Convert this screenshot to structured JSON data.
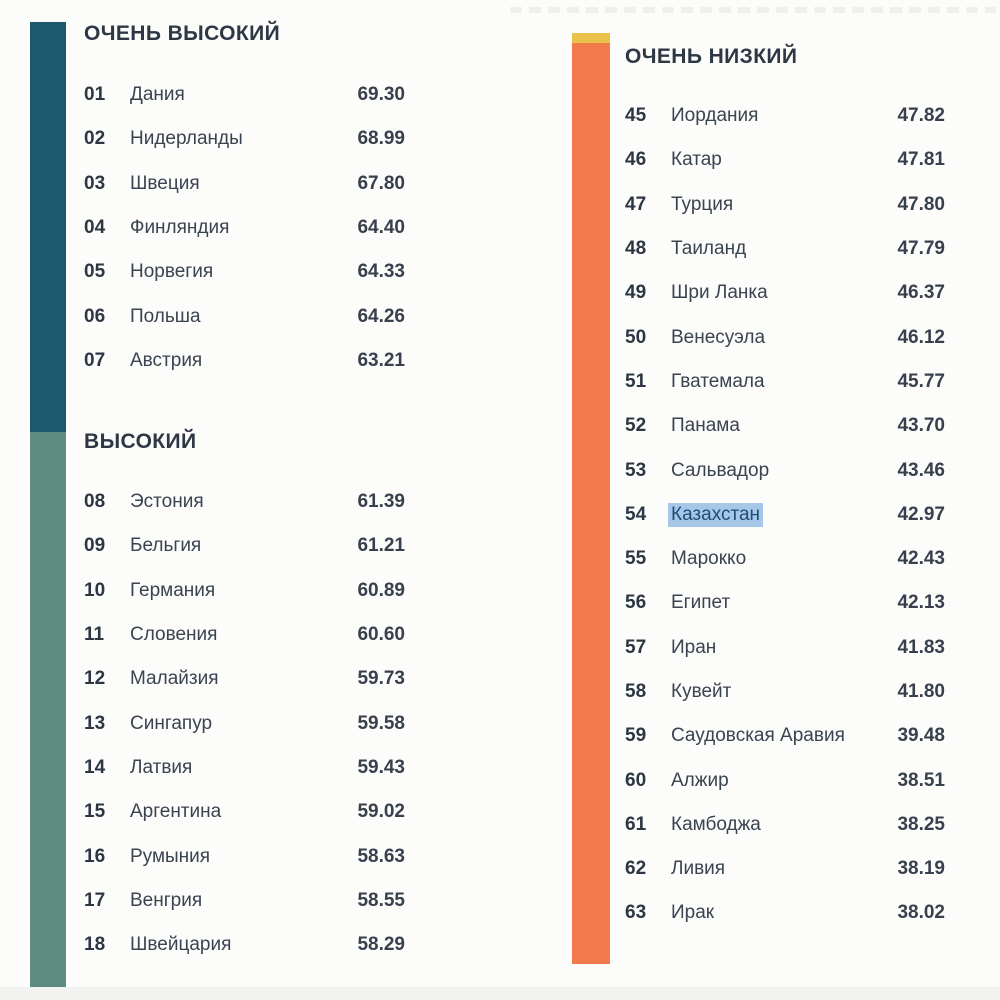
{
  "colors": {
    "very_high_bar": "#1d586d",
    "high_bar": "#5d8b80",
    "low_bar_accent": "#e8c24b",
    "very_low_bar": "#f2794b",
    "text": "#3a4350",
    "rank_text": "#2d3743",
    "header_text": "#2e3844",
    "score_text": "#39404d",
    "highlight_bg": "#a7c7e8",
    "highlight_text": "#1d4e79",
    "background": "#fcfcfb",
    "footer_strip": "#f2f2f0"
  },
  "columns": {
    "left": {
      "sections": [
        {
          "title": "ОЧЕНЬ ВЫСОКИЙ",
          "category_color": "#1d586d",
          "rows": [
            {
              "rank": "01",
              "country": "Дания",
              "score": "69.30"
            },
            {
              "rank": "02",
              "country": "Нидерланды",
              "score": "68.99"
            },
            {
              "rank": "03",
              "country": "Швеция",
              "score": "67.80"
            },
            {
              "rank": "04",
              "country": "Финляндия",
              "score": "64.40"
            },
            {
              "rank": "05",
              "country": "Норвегия",
              "score": "64.33"
            },
            {
              "rank": "06",
              "country": "Польша",
              "score": "64.26"
            },
            {
              "rank": "07",
              "country": "Австрия",
              "score": "63.21"
            }
          ]
        },
        {
          "title": "ВЫСОКИЙ",
          "category_color": "#5d8b80",
          "rows": [
            {
              "rank": "08",
              "country": "Эстония",
              "score": "61.39"
            },
            {
              "rank": "09",
              "country": "Бельгия",
              "score": "61.21"
            },
            {
              "rank": "10",
              "country": "Германия",
              "score": "60.89"
            },
            {
              "rank": "11",
              "country": "Словения",
              "score": "60.60"
            },
            {
              "rank": "12",
              "country": "Малайзия",
              "score": "59.73"
            },
            {
              "rank": "13",
              "country": "Сингапур",
              "score": "59.58"
            },
            {
              "rank": "14",
              "country": "Латвия",
              "score": "59.43"
            },
            {
              "rank": "15",
              "country": "Аргентина",
              "score": "59.02"
            },
            {
              "rank": "16",
              "country": "Румыния",
              "score": "58.63"
            },
            {
              "rank": "17",
              "country": "Венгрия",
              "score": "58.55"
            },
            {
              "rank": "18",
              "country": "Швейцария",
              "score": "58.29"
            }
          ]
        }
      ]
    },
    "right": {
      "sections": [
        {
          "title": "ОЧЕНЬ НИЗКИЙ",
          "category_color": "#f2794b",
          "previous_category_color": "#e8c24b",
          "rows": [
            {
              "rank": "45",
              "country": "Иордания",
              "score": "47.82"
            },
            {
              "rank": "46",
              "country": "Катар",
              "score": "47.81"
            },
            {
              "rank": "47",
              "country": "Турция",
              "score": "47.80"
            },
            {
              "rank": "48",
              "country": "Таиланд",
              "score": "47.79"
            },
            {
              "rank": "49",
              "country": "Шри Ланка",
              "score": "46.37"
            },
            {
              "rank": "50",
              "country": "Венесуэла",
              "score": "46.12"
            },
            {
              "rank": "51",
              "country": "Гватемала",
              "score": "45.77"
            },
            {
              "rank": "52",
              "country": "Панама",
              "score": "43.70"
            },
            {
              "rank": "53",
              "country": "Сальвадор",
              "score": "43.46"
            },
            {
              "rank": "54",
              "country": "Казахстан",
              "score": "42.97",
              "highlighted": true
            },
            {
              "rank": "55",
              "country": "Марокко",
              "score": "42.43"
            },
            {
              "rank": "56",
              "country": "Египет",
              "score": "42.13"
            },
            {
              "rank": "57",
              "country": "Иран",
              "score": "41.83"
            },
            {
              "rank": "58",
              "country": "Кувейт",
              "score": "41.80"
            },
            {
              "rank": "59",
              "country": "Саудовская Аравия",
              "score": "39.48"
            },
            {
              "rank": "60",
              "country": "Алжир",
              "score": "38.51"
            },
            {
              "rank": "61",
              "country": "Камбоджа",
              "score": "38.25"
            },
            {
              "rank": "62",
              "country": "Ливия",
              "score": "38.19"
            },
            {
              "rank": "63",
              "country": "Ирак",
              "score": "38.02"
            }
          ]
        }
      ]
    }
  }
}
